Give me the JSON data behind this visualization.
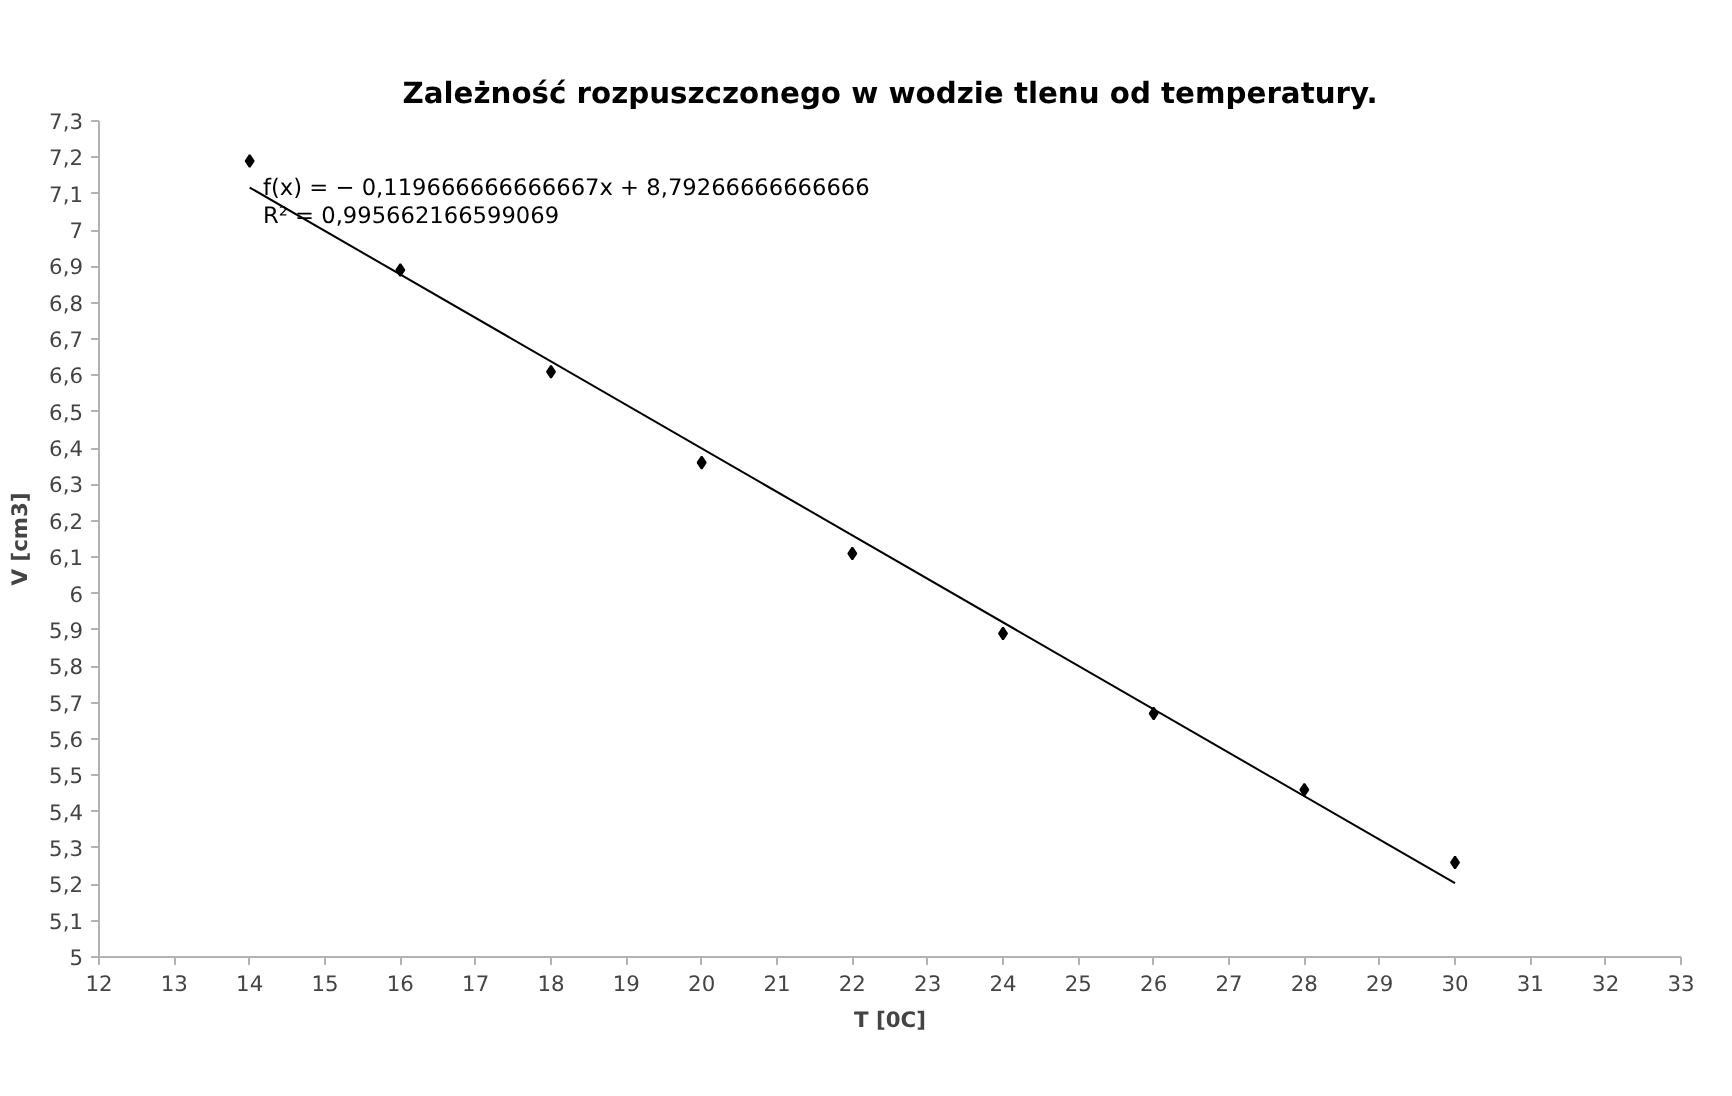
{
  "chart_data": {
    "type": "scatter",
    "title": "Zależność rozpuszczonego w wodzie tlenu od temperatury.",
    "xlabel": "T [0C]",
    "ylabel": "V [cm3]",
    "x": [
      14,
      16,
      18,
      20,
      22,
      24,
      26,
      28,
      30
    ],
    "series": [
      {
        "color": "#000000",
        "marker": "diamond",
        "values": [
          7.19,
          6.89,
          6.61,
          6.36,
          6.11,
          5.89,
          5.67,
          5.46,
          5.26
        ]
      },
      {
        "type": "line",
        "color": "#000000",
        "x": [
          14,
          30
        ],
        "values": [
          7.117,
          5.203
        ]
      }
    ],
    "grid": false,
    "xlim": [
      12,
      33
    ],
    "xticks": [
      12,
      13,
      14,
      15,
      16,
      17,
      18,
      19,
      20,
      21,
      22,
      23,
      24,
      25,
      26,
      27,
      28,
      29,
      30,
      31,
      32,
      33
    ],
    "ylim": [
      5,
      7.3
    ],
    "yticks": [
      {
        "value": 5,
        "label": "5"
      },
      {
        "value": 5.1,
        "label": "5,1"
      },
      {
        "value": 5.2,
        "label": "5,2"
      },
      {
        "value": 5.3,
        "label": "5,3"
      },
      {
        "value": 5.4,
        "label": "5,4"
      },
      {
        "value": 5.5,
        "label": "5,5"
      },
      {
        "value": 5.6,
        "label": "5,6"
      },
      {
        "value": 5.7,
        "label": "5,7"
      },
      {
        "value": 5.8,
        "label": "5,8"
      },
      {
        "value": 5.9,
        "label": "5,9"
      },
      {
        "value": 6,
        "label": "6"
      },
      {
        "value": 6.1,
        "label": "6,1"
      },
      {
        "value": 6.2,
        "label": "6,2"
      },
      {
        "value": 6.3,
        "label": "6,3"
      },
      {
        "value": 6.4,
        "label": "6,4"
      },
      {
        "value": 6.5,
        "label": "6,5"
      },
      {
        "value": 6.6,
        "label": "6,6"
      },
      {
        "value": 6.7,
        "label": "6,7"
      },
      {
        "value": 6.8,
        "label": "6,8"
      },
      {
        "value": 6.9,
        "label": "6,9"
      },
      {
        "value": 7,
        "label": "7"
      },
      {
        "value": 7.1,
        "label": "7,1"
      },
      {
        "value": 7.2,
        "label": "7,2"
      },
      {
        "value": 7.3,
        "label": "7,3"
      }
    ],
    "annotations": [
      "f(x) = − 0,119666666666667x + 8,79266666666666",
      "R² = 0,995662166599069"
    ]
  }
}
